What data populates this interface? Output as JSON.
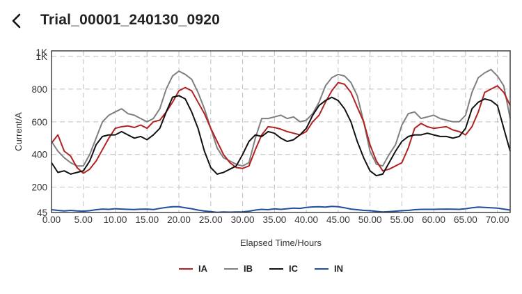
{
  "header": {
    "back_icon": "chevron-left-icon",
    "title": "Trial_00001_240130_0920"
  },
  "chart_data": {
    "type": "line",
    "title": "Trial_00001_240130_0920",
    "xlabel": "Elapsed Time/Hours",
    "ylabel": "Current/A",
    "xlim": [
      0,
      72
    ],
    "ylim": [
      45,
      1000
    ],
    "x_ticks": [
      "0.00",
      "5.00",
      "10.00",
      "15.00",
      "20.00",
      "25.00",
      "30.00",
      "35.00",
      "40.00",
      "45.00",
      "50.00",
      "55.00",
      "60.00",
      "65.00",
      "70.00"
    ],
    "x_tick_values": [
      0,
      5,
      10,
      15,
      20,
      25,
      30,
      35,
      40,
      45,
      50,
      55,
      60,
      65,
      70
    ],
    "y_ticks": [
      "45",
      "200",
      "400",
      "600",
      "800",
      "1K"
    ],
    "y_tick_values": [
      45,
      200,
      400,
      600,
      800,
      1000
    ],
    "y_top_overlap_label": "1K",
    "grid": true,
    "grid_style": "dashed",
    "legend_position": "bottom",
    "x": [
      0,
      1,
      2,
      3,
      4,
      5,
      6,
      7,
      8,
      9,
      10,
      11,
      12,
      13,
      14,
      15,
      16,
      17,
      18,
      19,
      20,
      21,
      22,
      23,
      24,
      25,
      26,
      27,
      28,
      29,
      30,
      31,
      32,
      33,
      34,
      35,
      36,
      37,
      38,
      39,
      40,
      41,
      42,
      43,
      44,
      45,
      46,
      47,
      48,
      49,
      50,
      51,
      52,
      53,
      54,
      55,
      56,
      57,
      58,
      59,
      60,
      61,
      62,
      63,
      64,
      65,
      66,
      67,
      68,
      69,
      70,
      71,
      72
    ],
    "series": [
      {
        "name": "IA",
        "color": "#b22222",
        "values": [
          470,
          520,
          420,
          390,
          320,
          285,
          310,
          360,
          430,
          500,
          560,
          570,
          575,
          565,
          580,
          560,
          600,
          610,
          660,
          720,
          790,
          810,
          790,
          720,
          650,
          560,
          480,
          400,
          350,
          320,
          315,
          330,
          430,
          520,
          570,
          565,
          555,
          540,
          530,
          520,
          540,
          600,
          640,
          720,
          790,
          840,
          830,
          780,
          690,
          600,
          460,
          360,
          300,
          310,
          330,
          350,
          440,
          560,
          590,
          570,
          560,
          565,
          570,
          550,
          540,
          520,
          570,
          660,
          780,
          800,
          820,
          780,
          700
        ]
      },
      {
        "name": "IB",
        "color": "#7f7f7f",
        "values": [
          480,
          420,
          380,
          350,
          330,
          330,
          400,
          500,
          600,
          640,
          660,
          680,
          650,
          640,
          620,
          600,
          620,
          680,
          800,
          880,
          910,
          890,
          860,
          780,
          680,
          560,
          440,
          380,
          360,
          340,
          330,
          350,
          500,
          620,
          620,
          630,
          640,
          620,
          630,
          600,
          610,
          650,
          720,
          820,
          870,
          890,
          880,
          840,
          760,
          600,
          420,
          340,
          330,
          400,
          460,
          580,
          650,
          660,
          620,
          630,
          640,
          620,
          610,
          600,
          600,
          640,
          780,
          870,
          900,
          920,
          880,
          820,
          620
        ]
      },
      {
        "name": "IC",
        "color": "#111111",
        "values": [
          350,
          290,
          300,
          280,
          290,
          300,
          360,
          460,
          510,
          520,
          520,
          540,
          520,
          500,
          510,
          490,
          520,
          560,
          660,
          750,
          760,
          740,
          660,
          560,
          420,
          320,
          280,
          290,
          310,
          330,
          400,
          480,
          520,
          510,
          540,
          530,
          500,
          480,
          490,
          520,
          560,
          640,
          700,
          730,
          750,
          730,
          680,
          600,
          480,
          380,
          300,
          270,
          280,
          350,
          420,
          480,
          510,
          520,
          520,
          530,
          520,
          510,
          510,
          500,
          510,
          560,
          680,
          720,
          740,
          730,
          700,
          560,
          420
        ]
      },
      {
        "name": "IN",
        "color": "#1f4e9c",
        "values": [
          62,
          58,
          55,
          58,
          55,
          53,
          56,
          62,
          66,
          64,
          68,
          66,
          64,
          63,
          65,
          66,
          63,
          70,
          76,
          80,
          80,
          74,
          68,
          60,
          54,
          50,
          46,
          48,
          47,
          48,
          49,
          53,
          60,
          64,
          62,
          67,
          64,
          68,
          72,
          70,
          76,
          79,
          80,
          78,
          82,
          80,
          74,
          66,
          62,
          58,
          56,
          52,
          48,
          50,
          53,
          56,
          58,
          62,
          64,
          64,
          64,
          65,
          66,
          65,
          64,
          68,
          74,
          78,
          76,
          74,
          72,
          66,
          60
        ]
      }
    ]
  },
  "legend": {
    "items": [
      {
        "label": "IA",
        "color": "#b22222"
      },
      {
        "label": "IB",
        "color": "#7f7f7f"
      },
      {
        "label": "IC",
        "color": "#111111"
      },
      {
        "label": "IN",
        "color": "#1f4e9c"
      }
    ]
  }
}
